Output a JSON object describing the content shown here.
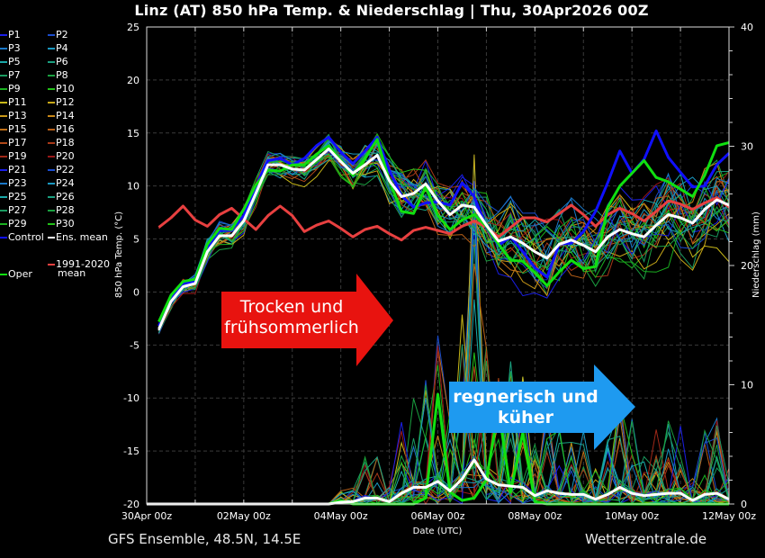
{
  "title": "Linz  (AT)  850 hPa Temp. & Niederschlag | Thu, 30Apr2026 00Z",
  "footer": {
    "left": "GFS Ensemble, 48.5N, 14.5E",
    "right": "Wetterzentrale.de"
  },
  "annotations": {
    "red_arrow": {
      "line1": "Trocken und",
      "line2": "frühsommerlich",
      "color": "#e8130f"
    },
    "blue_arrow": {
      "line1": "regnerisch und",
      "line2": "küher",
      "color": "#1e9af0"
    }
  },
  "legend": {
    "members": [
      "P1",
      "P2",
      "P3",
      "P4",
      "P5",
      "P6",
      "P7",
      "P8",
      "P9",
      "P10",
      "P11",
      "P12",
      "P13",
      "P14",
      "P15",
      "P16",
      "P17",
      "P18",
      "P19",
      "P20",
      "P21",
      "P22",
      "P23",
      "P24",
      "P25",
      "P26",
      "P27",
      "P28",
      "P29",
      "P30"
    ],
    "member_colors": [
      "#1a1ee6",
      "#1a4ccc",
      "#1a78c8",
      "#1a98c0",
      "#1aa8a8",
      "#1aa080",
      "#1a9a60",
      "#1aa040",
      "#1ab020",
      "#22c018",
      "#c8b818",
      "#c8a818",
      "#c89818",
      "#c88818",
      "#c07018",
      "#b86018",
      "#b04818",
      "#a83818",
      "#a02818",
      "#981818",
      "#1a1ee6",
      "#1a4ccc",
      "#1a78c8",
      "#1a98c0",
      "#1aa8a8",
      "#1aa080",
      "#1a9a60",
      "#1aa040",
      "#1ab020",
      "#22c018"
    ],
    "control": "Control",
    "ens_mean": "Ens. mean",
    "oper": "Oper",
    "clim_line1": "1991-2020",
    "clim_line2": "mean"
  },
  "chart_data": {
    "type": "line",
    "title": "Linz  (AT)  850 hPa Temp. & Niederschlag | Thu, 30Apr2026 00Z",
    "xlabel": "Date (UTC)",
    "ylabel": "850 hPa Temp. (°C)",
    "y2label": "Niederschlag (mm)",
    "x_tick_labels": [
      "30Apr 00z",
      "02May 00z",
      "04May 00z",
      "06May 00z",
      "08May 00z",
      "10May 00z",
      "12May 00z"
    ],
    "x_range_hours": [
      0,
      288
    ],
    "x_step_hours": 6,
    "x_first_hour": 6,
    "ylim": [
      -20,
      25
    ],
    "y_ticks": [
      -20,
      -15,
      -10,
      -5,
      0,
      5,
      10,
      15,
      20,
      25
    ],
    "y2lim": [
      0,
      40
    ],
    "y2_ticks": [
      0,
      10,
      20,
      30,
      40
    ],
    "grid": true,
    "colors": {
      "control": "#1010ff",
      "ens_mean": "#ffffff",
      "oper": "#10e010",
      "climatology": "#e84040"
    },
    "series": [
      {
        "name": "Ens. mean",
        "axis": "temp",
        "values": [
          -3.5,
          -0.9,
          0.5,
          0.8,
          3.8,
          5.3,
          5.3,
          6.7,
          9.3,
          12.0,
          12.0,
          11.6,
          11.5,
          12.5,
          13.5,
          12.3,
          11.2,
          12.0,
          12.9,
          10.5,
          9.0,
          9.3,
          10.2,
          8.6,
          7.3,
          8.2,
          8.0,
          6.3,
          4.8,
          5.2,
          4.6,
          3.8,
          3.2,
          4.5,
          4.9,
          4.4,
          3.8,
          5.2,
          5.9,
          5.5,
          5.2,
          6.3,
          7.3,
          7.0,
          6.5,
          7.8,
          8.7,
          8.2
        ]
      },
      {
        "name": "Control",
        "axis": "temp",
        "values": [
          -3.2,
          -0.5,
          0.8,
          1.0,
          4.2,
          5.8,
          5.8,
          7.2,
          10.0,
          12.4,
          12.6,
          12.0,
          12.6,
          13.8,
          14.6,
          13.2,
          12.1,
          13.3,
          14.6,
          11.5,
          9.1,
          8.0,
          8.4,
          8.5,
          8.2,
          10.3,
          9.0,
          6.1,
          4.4,
          5.2,
          3.8,
          2.3,
          1.4,
          4.5,
          4.6,
          5.7,
          7.6,
          10.3,
          13.3,
          11.2,
          12.5,
          15.2,
          12.7,
          11.3,
          9.9,
          10.0,
          12.0,
          13.1
        ]
      },
      {
        "name": "Oper",
        "axis": "temp",
        "values": [
          -2.8,
          -0.3,
          1.0,
          1.2,
          4.5,
          6.0,
          5.9,
          7.8,
          10.1,
          11.5,
          11.4,
          12.0,
          12.0,
          13.0,
          13.8,
          12.4,
          11.0,
          12.6,
          14.4,
          10.5,
          7.6,
          7.4,
          9.9,
          7.2,
          5.9,
          6.8,
          7.3,
          6.2,
          4.5,
          3.0,
          2.9,
          1.8,
          0.6,
          1.9,
          3.0,
          2.2,
          2.4,
          8.0,
          10.0,
          11.2,
          12.4,
          10.8,
          10.4,
          9.7,
          9.0,
          11.0,
          13.8,
          14.1
        ]
      },
      {
        "name": "1991-2020 mean",
        "axis": "temp",
        "values": [
          6.1,
          7.0,
          8.1,
          6.8,
          6.2,
          7.3,
          7.9,
          6.9,
          5.9,
          7.2,
          8.1,
          7.2,
          5.7,
          6.3,
          6.7,
          6.0,
          5.2,
          5.9,
          6.2,
          5.5,
          4.9,
          5.8,
          6.1,
          5.8,
          5.5,
          6.2,
          6.7,
          6.1,
          5.2,
          6.1,
          7.0,
          7.0,
          6.6,
          7.4,
          8.2,
          7.3,
          6.2,
          7.3,
          7.9,
          7.4,
          6.7,
          7.6,
          8.6,
          8.3,
          7.8,
          8.4,
          8.9,
          8.0
        ]
      },
      {
        "name": "Ens. mean precip",
        "axis": "precip",
        "values": [
          0,
          0,
          0,
          0,
          0,
          0,
          0,
          0,
          0,
          0,
          0,
          0,
          0,
          0,
          0,
          0.15,
          0.2,
          0.5,
          0.5,
          0.2,
          0.9,
          1.4,
          1.4,
          1.9,
          1.1,
          2.1,
          3.7,
          2.1,
          1.6,
          1.5,
          1.4,
          0.7,
          1.1,
          0.9,
          0.8,
          0.8,
          0.4,
          0.8,
          1.4,
          0.9,
          0.7,
          0.8,
          0.9,
          0.9,
          0.3,
          0.8,
          0.9,
          0.4
        ]
      },
      {
        "name": "Oper precip",
        "axis": "precip",
        "values": [
          0,
          0,
          0,
          0,
          0,
          0,
          0,
          0,
          0,
          0,
          0,
          0,
          0,
          0,
          0,
          0.3,
          0,
          0,
          0,
          0,
          0,
          0,
          0.5,
          9.2,
          1,
          0.3,
          0.5,
          2,
          8,
          1,
          6,
          0.2,
          0,
          0,
          0,
          0,
          0,
          0,
          0,
          0,
          0,
          0,
          0,
          0,
          0,
          0,
          0,
          0
        ]
      }
    ],
    "member_temp_spread": [
      0.8,
      1,
      1,
      1.2,
      1.5,
      1.5,
      1.5,
      1.5,
      1.5,
      1.5,
      1.5,
      1.5,
      1.5,
      1.5,
      1.5,
      2,
      2.5,
      2.5,
      2.5,
      3,
      3,
      3.5,
      3.5,
      3.5,
      4,
      4,
      4,
      4,
      4.5,
      4.5,
      4.5,
      4.5,
      4.5,
      4.5,
      4.5,
      4.5,
      4.5,
      4.5,
      4.5,
      4.5,
      4.5,
      4.5,
      4.5,
      4.5,
      4.5,
      4.5,
      4.5,
      4.5
    ]
  }
}
